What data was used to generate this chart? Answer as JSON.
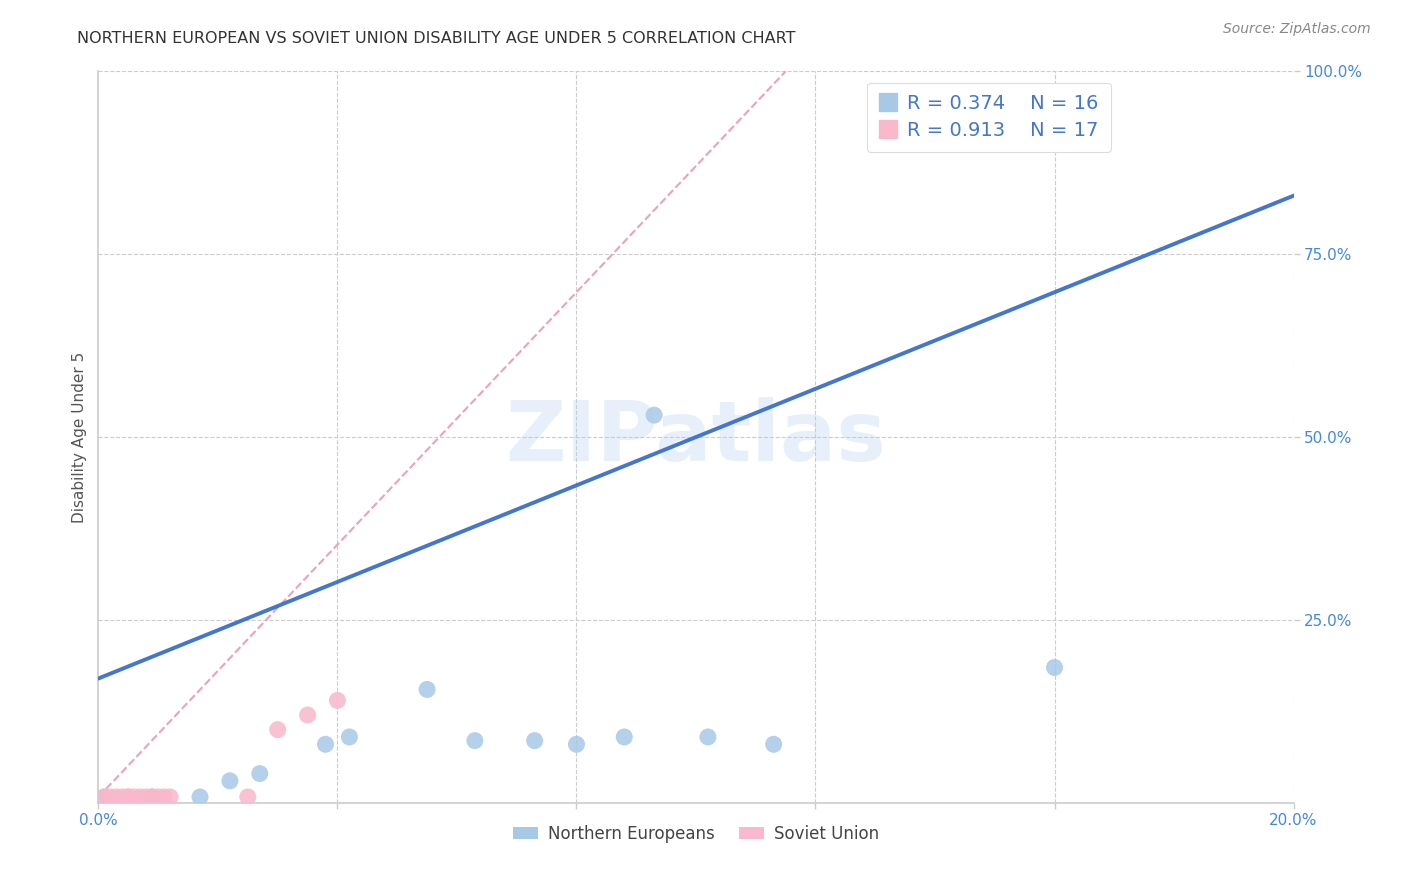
{
  "title": "NORTHERN EUROPEAN VS SOVIET UNION DISABILITY AGE UNDER 5 CORRELATION CHART",
  "source": "Source: ZipAtlas.com",
  "ylabel": "Disability Age Under 5",
  "watermark": "ZIPatlas",
  "xlim": [
    0.0,
    0.2
  ],
  "ylim": [
    0.0,
    1.0
  ],
  "ytick_values": [
    0.25,
    0.5,
    0.75,
    1.0
  ],
  "ytick_labels": [
    "25.0%",
    "50.0%",
    "75.0%",
    "100.0%"
  ],
  "xtick_values": [
    0.0,
    0.04,
    0.08,
    0.12,
    0.16,
    0.2
  ],
  "xtick_labels": [
    "0.0%",
    "",
    "",
    "",
    "",
    "20.0%"
  ],
  "blue_scatter_x": [
    0.001,
    0.009,
    0.017,
    0.022,
    0.027,
    0.038,
    0.042,
    0.055,
    0.063,
    0.073,
    0.08,
    0.088,
    0.093,
    0.102,
    0.113,
    0.16
  ],
  "blue_scatter_y": [
    0.008,
    0.008,
    0.008,
    0.03,
    0.04,
    0.08,
    0.09,
    0.155,
    0.085,
    0.085,
    0.08,
    0.09,
    0.53,
    0.09,
    0.08,
    0.185
  ],
  "pink_scatter_x": [
    0.001,
    0.002,
    0.003,
    0.004,
    0.005,
    0.005,
    0.006,
    0.007,
    0.008,
    0.009,
    0.01,
    0.011,
    0.012,
    0.025,
    0.03,
    0.035,
    0.04
  ],
  "pink_scatter_y": [
    0.008,
    0.008,
    0.008,
    0.008,
    0.008,
    0.008,
    0.008,
    0.008,
    0.008,
    0.008,
    0.008,
    0.008,
    0.008,
    0.008,
    0.1,
    0.12,
    0.14
  ],
  "blue_trendline_x": [
    0.0,
    0.2
  ],
  "blue_trendline_y": [
    0.17,
    0.83
  ],
  "pink_trendline_x": [
    0.0,
    0.115
  ],
  "pink_trendline_y": [
    0.008,
    1.0
  ],
  "blue_R": "0.374",
  "blue_N": "16",
  "pink_R": "0.913",
  "pink_N": "17",
  "blue_scatter_color": "#A8C8E8",
  "blue_line_color": "#4477CC",
  "pink_scatter_color": "#F9B8CB",
  "pink_line_color": "#F0A0BB",
  "grid_color": "#CCCCCC",
  "title_color": "#333333",
  "axis_label_color": "#555555",
  "tick_color": "#4488DD",
  "source_color": "#888888",
  "bg_color": "#FFFFFF",
  "legend_text_color": "#4477CC"
}
